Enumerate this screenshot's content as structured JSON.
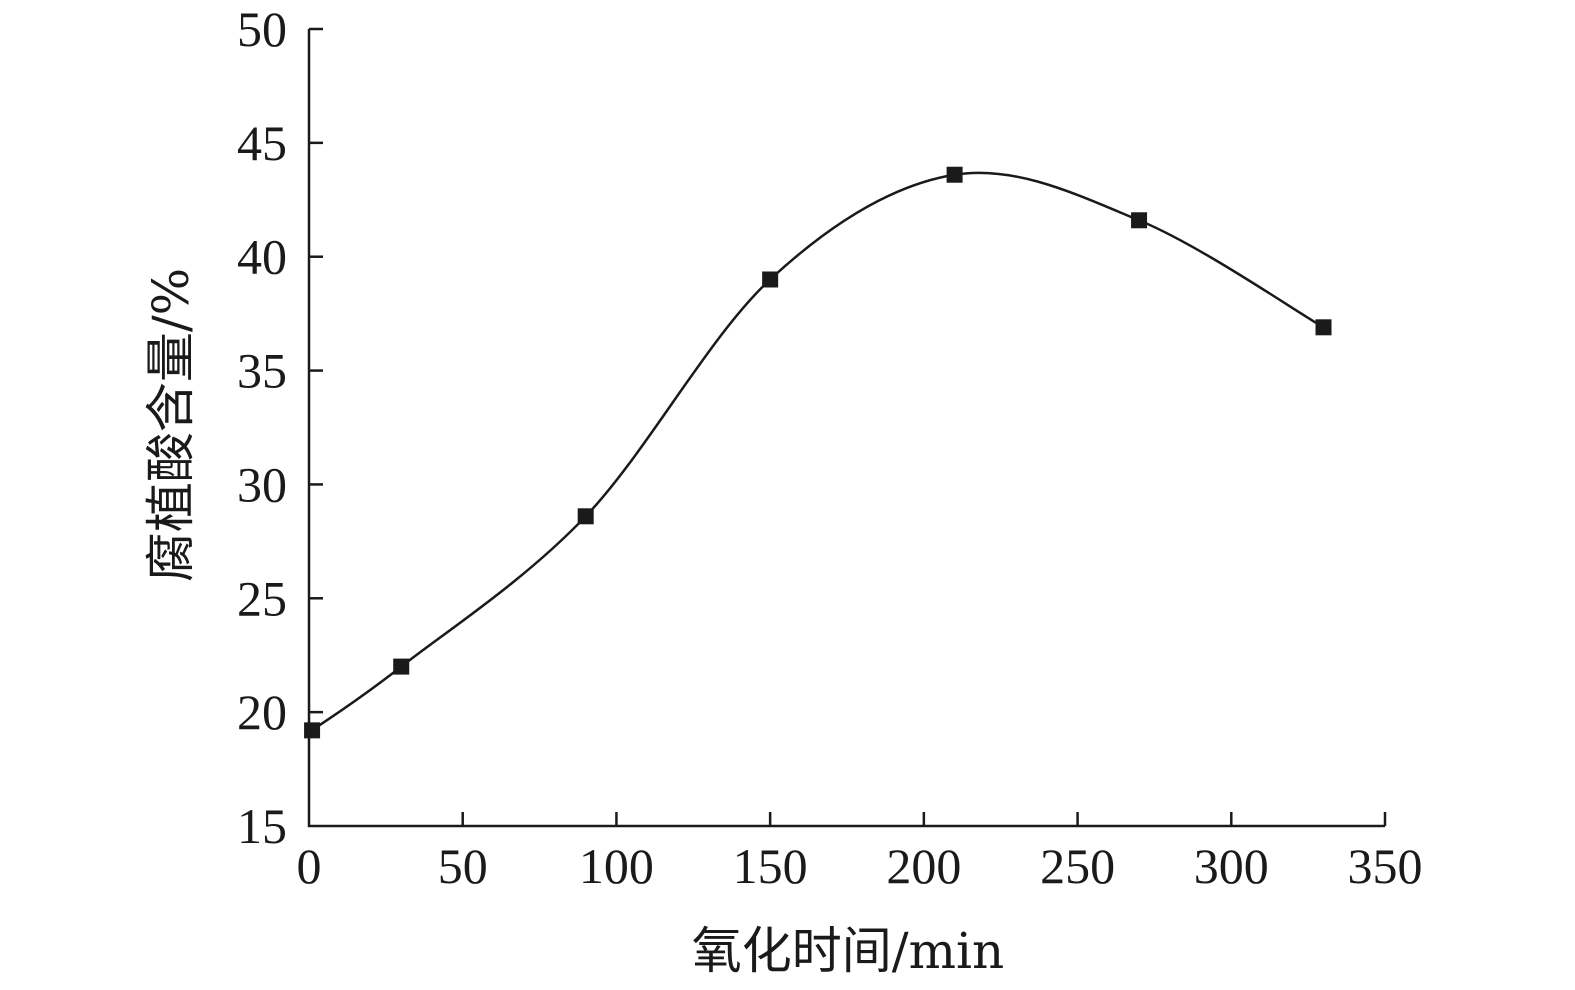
{
  "chart_data": {
    "type": "line",
    "title": "",
    "xlabel": "氧化时间/min",
    "ylabel": "腐植酸含量/%",
    "xlim": [
      0,
      350
    ],
    "ylim": [
      15,
      50
    ],
    "xticks": [
      0,
      50,
      100,
      150,
      200,
      250,
      300,
      350
    ],
    "yticks": [
      15,
      20,
      25,
      30,
      35,
      40,
      45,
      50
    ],
    "grid": false,
    "legend": "none",
    "marker": "square",
    "line_style": "smooth",
    "color": "#1a1a1a",
    "series": [
      {
        "x": [
          1,
          30,
          90,
          150,
          210,
          270,
          330
        ],
        "y": [
          19.2,
          22.0,
          28.6,
          39.0,
          43.6,
          41.6,
          36.9
        ]
      }
    ]
  }
}
